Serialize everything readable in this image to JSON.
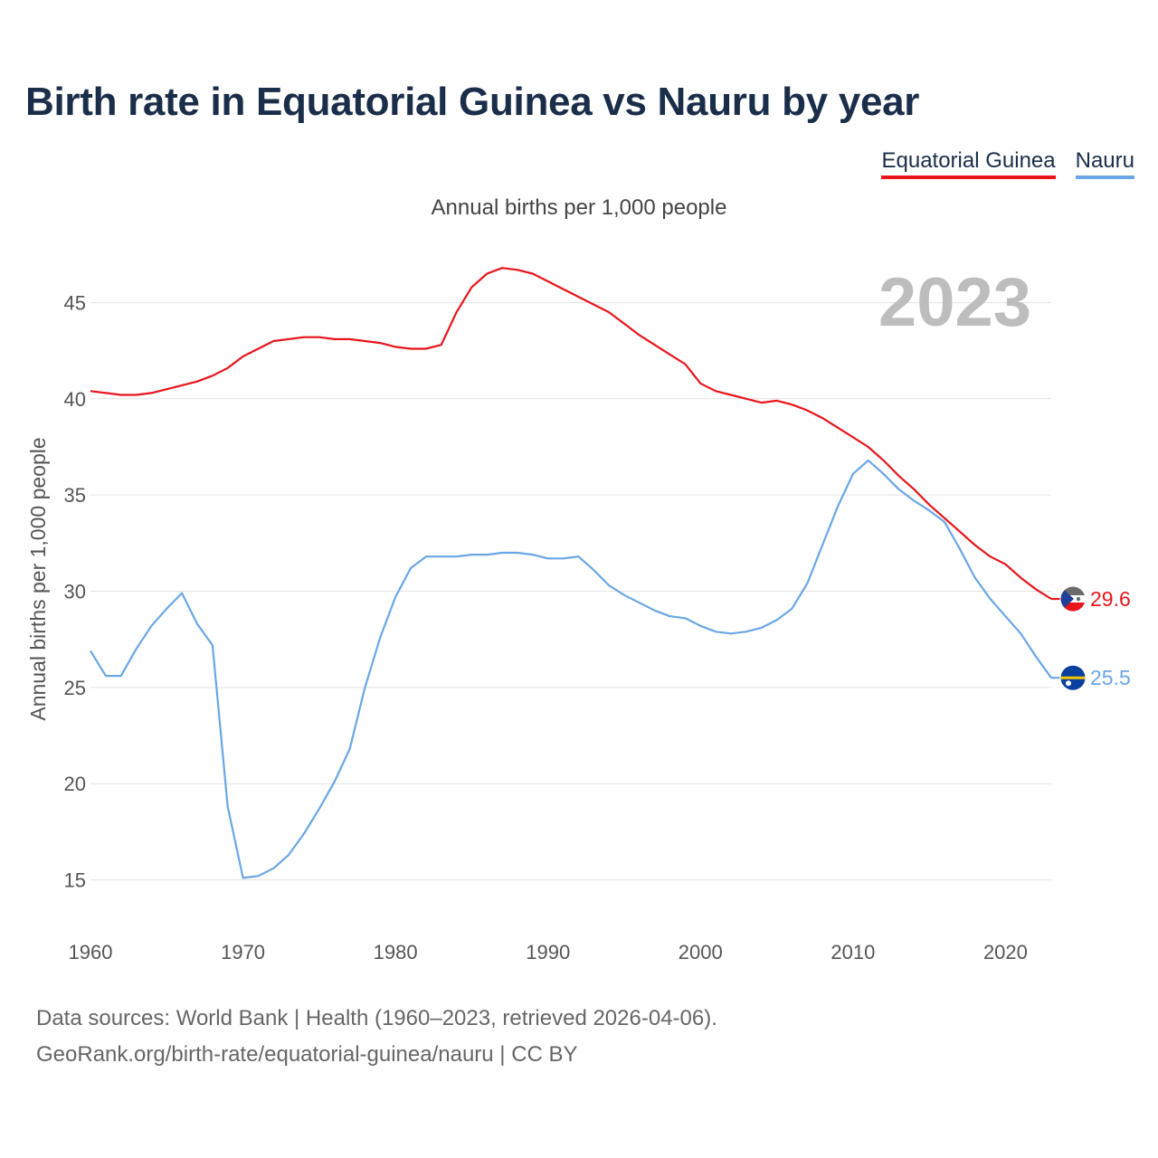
{
  "title": "Birth rate in Equatorial Guinea vs Nauru by year",
  "subtitle": "Annual births per 1,000 people",
  "legend": [
    {
      "label": "Equatorial Guinea",
      "color": "#e8151b"
    },
    {
      "label": "Nauru",
      "color": "#6aa6e6"
    }
  ],
  "footer": {
    "line1": "Data sources: World Bank | Health (1960–2023, retrieved 2026-04-06).",
    "line2": "GeoRank.org/birth-rate/equatorial-guinea/nauru | CC BY"
  },
  "chart_data": {
    "type": "line",
    "title": "Birth rate in Equatorial Guinea vs Nauru by year",
    "ylabel": "Annual births per 1,000 people",
    "xlabel": "",
    "year_label": "2023",
    "xlim": [
      1960,
      2023
    ],
    "ylim": [
      12.3,
      48.5
    ],
    "yticks": [
      15,
      20,
      25,
      30,
      35,
      40,
      45
    ],
    "xticks": [
      1960,
      1970,
      1980,
      1990,
      2000,
      2010,
      2020
    ],
    "grid": true,
    "legend_position": "top-right",
    "x": [
      1960,
      1961,
      1962,
      1963,
      1964,
      1965,
      1966,
      1967,
      1968,
      1969,
      1970,
      1971,
      1972,
      1973,
      1974,
      1975,
      1976,
      1977,
      1978,
      1979,
      1980,
      1981,
      1982,
      1983,
      1984,
      1985,
      1986,
      1987,
      1988,
      1989,
      1990,
      1991,
      1992,
      1993,
      1994,
      1995,
      1996,
      1997,
      1998,
      1999,
      2000,
      2001,
      2002,
      2003,
      2004,
      2005,
      2006,
      2007,
      2008,
      2009,
      2010,
      2011,
      2012,
      2013,
      2014,
      2015,
      2016,
      2017,
      2018,
      2019,
      2020,
      2021,
      2022,
      2023
    ],
    "series": [
      {
        "name": "Equatorial Guinea",
        "color": "#e8151b",
        "end_label": "29.6",
        "values": [
          40.4,
          40.3,
          40.2,
          40.2,
          40.3,
          40.5,
          40.7,
          40.9,
          41.2,
          41.6,
          42.2,
          42.6,
          43.0,
          43.1,
          43.2,
          43.2,
          43.1,
          43.1,
          43.0,
          42.9,
          42.7,
          42.6,
          42.6,
          42.8,
          44.5,
          45.8,
          46.5,
          46.8,
          46.7,
          46.5,
          46.1,
          45.7,
          45.3,
          44.9,
          44.5,
          43.9,
          43.3,
          42.8,
          42.3,
          41.8,
          40.8,
          40.4,
          40.2,
          40.0,
          39.8,
          39.9,
          39.7,
          39.4,
          39.0,
          38.5,
          38.0,
          37.5,
          36.8,
          36.0,
          35.3,
          34.5,
          33.8,
          33.1,
          32.4,
          31.8,
          31.4,
          30.7,
          30.1,
          29.6
        ]
      },
      {
        "name": "Nauru",
        "color": "#6aa6e6",
        "end_label": "25.5",
        "values": [
          26.9,
          25.6,
          25.6,
          27.0,
          28.2,
          29.1,
          29.9,
          28.3,
          27.2,
          18.8,
          15.1,
          15.2,
          15.6,
          16.3,
          17.4,
          18.7,
          20.1,
          21.8,
          25.0,
          27.6,
          29.7,
          31.2,
          31.8,
          31.8,
          31.8,
          31.9,
          31.9,
          32.0,
          32.0,
          31.9,
          31.7,
          31.7,
          31.8,
          31.1,
          30.3,
          29.8,
          29.4,
          29.0,
          28.7,
          28.6,
          28.2,
          27.9,
          27.8,
          27.9,
          28.1,
          28.5,
          29.1,
          30.4,
          32.4,
          34.4,
          36.1,
          36.8,
          36.1,
          35.3,
          34.7,
          34.2,
          33.6,
          32.2,
          30.7,
          29.6,
          28.7,
          27.8,
          26.6,
          25.5
        ]
      }
    ]
  }
}
